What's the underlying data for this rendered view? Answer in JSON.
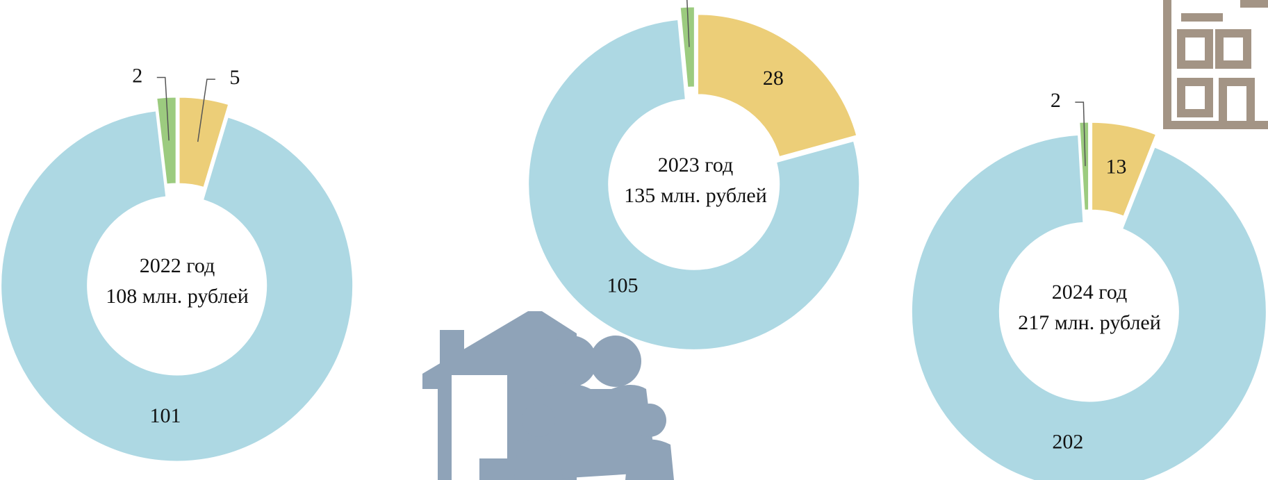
{
  "chart_data": [
    {
      "type": "donut",
      "center_text": [
        "2022 год",
        "108 млн. рублей"
      ],
      "values": [
        5,
        101,
        2
      ],
      "colors": [
        "#ecce78",
        "#add8e3",
        "#9ccb7f"
      ]
    },
    {
      "type": "donut",
      "center_text": [
        "2023 год",
        "135 млн. рублей"
      ],
      "values": [
        28,
        105,
        2
      ],
      "colors": [
        "#ecce78",
        "#add8e3",
        "#9ccb7f"
      ]
    },
    {
      "type": "donut",
      "center_text": [
        "2024 год",
        "217 млн. рублей"
      ],
      "values": [
        13,
        202,
        2
      ],
      "colors": [
        "#ecce78",
        "#add8e3",
        "#9ccb7f"
      ]
    }
  ]
}
